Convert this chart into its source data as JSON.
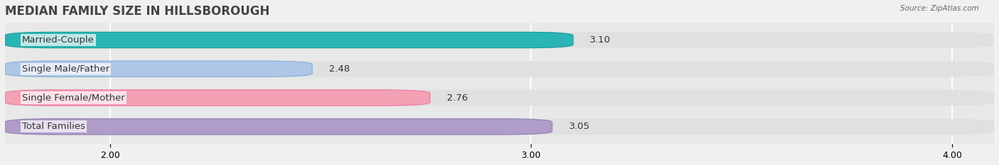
{
  "title": "MEDIAN FAMILY SIZE IN HILLSBOROUGH",
  "source": "Source: ZipAtlas.com",
  "categories": [
    "Married-Couple",
    "Single Male/Father",
    "Single Female/Mother",
    "Total Families"
  ],
  "values": [
    3.1,
    2.48,
    2.76,
    3.05
  ],
  "bar_colors": [
    "#2ab5b5",
    "#aec6e8",
    "#f4a0b5",
    "#b09cc8"
  ],
  "bar_edge_colors": [
    "#1a9898",
    "#8aadd4",
    "#e87a99",
    "#9080b4"
  ],
  "xmin": 1.75,
  "xmax": 4.1,
  "xticks": [
    2.0,
    3.0,
    4.0
  ],
  "xtick_labels": [
    "2.00",
    "3.00",
    "4.00"
  ],
  "bar_height": 0.55,
  "label_fontsize": 9.5,
  "value_fontsize": 9.5,
  "title_fontsize": 12,
  "background_color": "#f0f0f0",
  "bar_background_color": "#e8e8e8",
  "grid_color": "#ffffff"
}
